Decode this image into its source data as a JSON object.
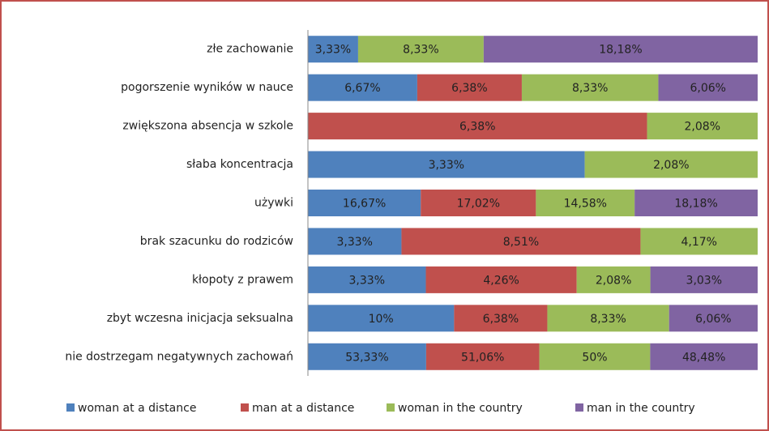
{
  "chart_data": {
    "type": "bar100h",
    "categories": [
      "złe zachowanie",
      "pogorszenie wyników w nauce",
      "zwiększona absencja w szkole",
      "słaba koncentracja",
      "używki",
      "brak szacunku do rodziców",
      "kłopoty z prawem",
      "zbyt wczesna inicjacja seksualna",
      "nie dostrzegam negatywnych zachowań"
    ],
    "series": [
      {
        "name": "woman at a distance",
        "color": "#4f81bd",
        "values": [
          3.33,
          6.67,
          null,
          3.33,
          16.67,
          3.33,
          3.33,
          10,
          53.33
        ],
        "value_labels": [
          "3,33%",
          "6,67%",
          null,
          "3,33%",
          "16,67%",
          "3,33%",
          "3,33%",
          "10%",
          "53,33%"
        ]
      },
      {
        "name": "man at a distance",
        "color": "#c0504d",
        "values": [
          null,
          6.38,
          6.38,
          null,
          17.02,
          8.51,
          4.26,
          6.38,
          51.06
        ],
        "value_labels": [
          null,
          "6,38%",
          "6,38%",
          null,
          "17,02%",
          "8,51%",
          "4,26%",
          "6,38%",
          "51,06%"
        ]
      },
      {
        "name": "woman in the country",
        "color": "#9bbb59",
        "values": [
          8.33,
          8.33,
          2.08,
          2.08,
          14.58,
          4.17,
          2.08,
          8.33,
          50
        ],
        "value_labels": [
          "8,33%",
          "8,33%",
          "2,08%",
          "2,08%",
          "14,58%",
          "4,17%",
          "2,08%",
          "8,33%",
          "50%"
        ]
      },
      {
        "name": "man in the country",
        "color": "#8064a2",
        "values": [
          18.18,
          6.06,
          null,
          null,
          18.18,
          null,
          3.03,
          6.06,
          48.48
        ],
        "value_labels": [
          "18,18%",
          "6,06%",
          null,
          null,
          "18,18%",
          null,
          "3,03%",
          "6,06%",
          "48,48%"
        ]
      }
    ],
    "legend": "bottom"
  }
}
